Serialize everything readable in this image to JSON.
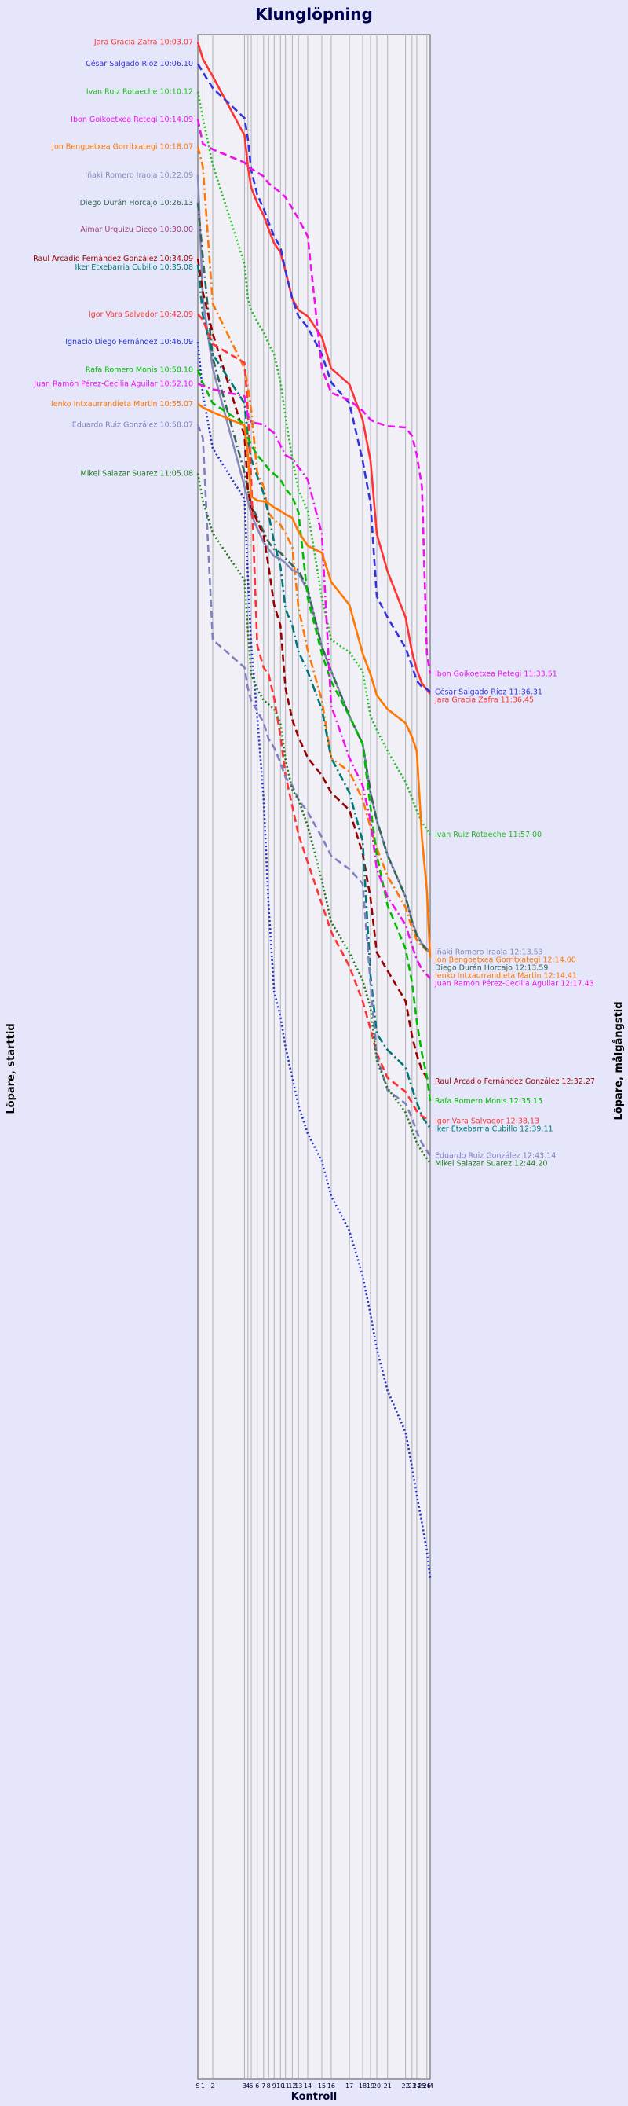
{
  "chart_data": {
    "type": "line",
    "title": "Klunglöpning",
    "xlabel": "Kontroll",
    "ylabel_left": "Löpare, starttid",
    "ylabel_right": "Löpare, målgångstid",
    "grid": true,
    "controls": [
      "S",
      "1",
      "2",
      "3",
      "4",
      "5",
      "6",
      "7",
      "8",
      "9",
      "10",
      "11",
      "12",
      "13",
      "14",
      "15",
      "16",
      "17",
      "18",
      "19",
      "20",
      "21",
      "22",
      "23",
      "24",
      "25",
      "26",
      "M"
    ],
    "x_tick_labels": [
      "S",
      "1",
      "2",
      "3",
      "4",
      "5",
      "6",
      "7",
      "8",
      "9",
      "10",
      "11",
      "12",
      "13",
      "14",
      "15",
      "16",
      "17",
      "18",
      "19",
      "20",
      "21",
      "22",
      "23",
      "24",
      "25",
      "26",
      "M"
    ],
    "y_range_minutes": [
      602.0,
      896.0
    ],
    "series": [
      {
        "name": "Jara Gracia Zafra",
        "start": "10:03.07",
        "finish": "11:36.45",
        "start_min": 603.1,
        "finish_min": 696.8,
        "color": "#ff3333",
        "dash": "solid",
        "times": [
          603.1,
          605.5,
          608.0,
          616.5,
          621.0,
          624.0,
          626.2,
          628.0,
          630.0,
          632.0,
          633.3,
          636.0,
          640.0,
          641.6,
          642.5,
          645.5,
          650.0,
          652.3,
          657.4,
          663.3,
          673.8,
          679.2,
          685.8,
          690.8,
          693.3,
          695.3,
          696.2,
          696.8
        ]
      },
      {
        "name": "César Salgado Rioz",
        "start": "10:06.10",
        "finish": "11:36.31",
        "start_min": 606.2,
        "finish_min": 696.5,
        "color": "#3333dd",
        "dash": "dash",
        "times": [
          606.2,
          607.4,
          609.7,
          614.0,
          617.0,
          621.5,
          625.0,
          627.0,
          629.0,
          631.0,
          632.6,
          636.0,
          640.0,
          642.5,
          644.1,
          648.0,
          652.0,
          655.0,
          663.3,
          669.4,
          682.8,
          685.8,
          690.2,
          692.8,
          694.9,
          695.8,
          696.1,
          696.5
        ]
      },
      {
        "name": "Ivan Ruiz Rotaeche",
        "start": "10:10.12",
        "finish": "11:57.00",
        "start_min": 610.2,
        "finish_min": 717.0,
        "color": "#22bb22",
        "dash": "dot",
        "times": [
          610.2,
          614.0,
          620.7,
          635.0,
          640.0,
          641.6,
          643.3,
          644.8,
          646.5,
          648.0,
          652.0,
          657.0,
          663.0,
          667.5,
          670.5,
          683.0,
          689.0,
          690.8,
          693.6,
          700.0,
          702.0,
          705.0,
          709.5,
          711.8,
          713.6,
          715.2,
          716.3,
          717.0
        ]
      },
      {
        "name": "Ibon Goikoetxea Retegi",
        "start": "10:14.09",
        "finish": "11:33.51",
        "start_min": 614.2,
        "finish_min": 693.9,
        "color": "#ee11ee",
        "dash": "dash",
        "times": [
          614.2,
          617.7,
          618.5,
          620.4,
          621.0,
          621.3,
          621.8,
          622.4,
          623.4,
          624.0,
          624.7,
          625.4,
          627.0,
          628.5,
          631.0,
          650.0,
          653.5,
          654.6,
          656.1,
          657.4,
          657.8,
          658.3,
          658.5,
          659.7,
          662.4,
          667.0,
          691.0,
          693.9
        ]
      },
      {
        "name": "Jon Bengoetxea Gorritxategi",
        "start": "10:18.07",
        "finish": "12:14.00",
        "start_min": 618.1,
        "finish_min": 734.0,
        "color": "#ff7700",
        "dash": "dashdot",
        "times": [
          618.1,
          621.0,
          640.7,
          650.0,
          652.7,
          656.0,
          665.0,
          667.0,
          670.8,
          671.8,
          672.5,
          673.7,
          675.7,
          684.4,
          690.5,
          697.7,
          706.0,
          708.0,
          712.0,
          716.0,
          719.0,
          723.0,
          727.5,
          730.5,
          732.2,
          733.1,
          733.7,
          734.0
        ]
      },
      {
        "name": "Iñaki Romero Iraola",
        "start": "10:22.09",
        "finish": "12:13.53",
        "start_min": 622.2,
        "finish_min": 733.9,
        "color": "#8888bb",
        "dash": "solid",
        "times": [
          622.2,
          640.0,
          650.0,
          667.0,
          669.0,
          671.0,
          673.0,
          675.0,
          676.0,
          677.0,
          677.4,
          678.0,
          679.0,
          679.4,
          682.0,
          690.0,
          693.5,
          700.0,
          704.0,
          711.0,
          715.0,
          720.0,
          726.0,
          729.5,
          731.4,
          732.7,
          733.5,
          733.9
        ]
      },
      {
        "name": "Diego Durán Horcajo",
        "start": "10:26.13",
        "finish": "12:13.59",
        "start_min": 626.2,
        "finish_min": 734.0,
        "color": "#336655",
        "dash": "dashdot",
        "times": [
          626.2,
          634.0,
          648.5,
          665.0,
          667.5,
          669.5,
          671.5,
          673.5,
          675.0,
          676.0,
          676.5,
          677.3,
          678.3,
          679.0,
          681.7,
          690.0,
          693.5,
          700.0,
          704.0,
          711.0,
          715.0,
          720.0,
          726.0,
          729.5,
          731.5,
          732.8,
          733.6,
          734.0
        ]
      },
      {
        "name": "Aimar Urquizu Diego",
        "start": "10:30.00",
        "finish": "",
        "start_min": 630.0,
        "finish_min": null,
        "color": "#a04080",
        "dash": "solid",
        "times": []
      },
      {
        "name": "Raul Arcadio Fernández González",
        "start": "10:34.09",
        "finish": "12:32.27",
        "start_min": 634.2,
        "finish_min": 752.5,
        "color": "#990000",
        "dash": "dash",
        "times": [
          634.2,
          639.0,
          645.0,
          659.7,
          667.4,
          669.9,
          672.0,
          674.0,
          678.5,
          684.0,
          687.0,
          696.0,
          700.5,
          703.0,
          706.0,
          708.5,
          711.0,
          713.5,
          719.8,
          726.2,
          734.0,
          736.6,
          741.0,
          746.0,
          748.7,
          750.9,
          752.0,
          752.5
        ]
      },
      {
        "name": "Iker Etxebarria Cubillo",
        "start": "10:35.08",
        "finish": "12:39.11",
        "start_min": 635.1,
        "finish_min": 759.2,
        "color": "#007777",
        "dash": "dashdot",
        "times": [
          635.1,
          642.4,
          648.0,
          655.0,
          660.0,
          663.0,
          665.5,
          668.0,
          671.0,
          675.0,
          678.5,
          684.6,
          687.0,
          690.7,
          693.6,
          699.0,
          706.0,
          711.0,
          718.0,
          737.3,
          745.7,
          748.0,
          750.5,
          753.5,
          755.5,
          757.5,
          758.6,
          759.2
        ]
      },
      {
        "name": "Igor Vara Salvador",
        "start": "10:42.09",
        "finish": "12:38.13",
        "start_min": 642.2,
        "finish_min": 758.2,
        "color": "#ff3333",
        "dash": "dash",
        "times": [
          642.2,
          643.0,
          646.5,
          649.2,
          656.0,
          666.0,
          689.8,
          693.0,
          694.0,
          697.4,
          702.9,
          708.5,
          713.0,
          717.0,
          721.0,
          727.0,
          731.0,
          736.0,
          741.0,
          745.0,
          748.5,
          752.0,
          754.0,
          755.6,
          756.8,
          757.5,
          757.9,
          758.2
        ]
      },
      {
        "name": "Ignacio Diego Fernández",
        "start": "10:46.09",
        "finish": "",
        "start_min": 646.2,
        "finish_min": null,
        "color": "#2233cc",
        "dash": "dot",
        "times": [
          646.2,
          653.7,
          661.5,
          668.8,
          680.0,
          689.8,
          700.0,
          711.9,
          727.3,
          739.6,
          743.2,
          747.6,
          752.0,
          756.0,
          760.0,
          764.0,
          769.0,
          774.0,
          780.5,
          786.0,
          791.0,
          797.0,
          803.0,
          808.0,
          812.0,
          816.0,
          820.0,
          824.0
        ]
      },
      {
        "name": "Rafa Romero Monis",
        "start": "10:50.10",
        "finish": "12:35.15",
        "start_min": 650.2,
        "finish_min": 755.3,
        "color": "#00bb00",
        "dash": "dash",
        "times": [
          650.2,
          652.1,
          655.0,
          658.0,
          659.9,
          661.0,
          662.5,
          663.5,
          664.5,
          665.2,
          666.0,
          667.3,
          668.5,
          670.7,
          683.0,
          691.0,
          695.0,
          700.0,
          704.0,
          713.1,
          720.0,
          727.2,
          733.5,
          738.3,
          743.9,
          748.5,
          751.8,
          755.3
        ]
      },
      {
        "name": "Juan Ramón Pérez-Cecilia Aguilar",
        "start": "10:52.10",
        "finish": "12:17.43",
        "start_min": 652.2,
        "finish_min": 737.7,
        "color": "#ee11ee",
        "dash": "dashdot",
        "times": [
          652.2,
          652.5,
          653.0,
          654.0,
          656.8,
          657.7,
          657.9,
          658.1,
          658.7,
          659.3,
          661.1,
          662.5,
          663.0,
          664.2,
          666.0,
          673.8,
          698.5,
          706.0,
          710.0,
          715.0,
          722.0,
          726.0,
          730.0,
          733.0,
          735.0,
          736.4,
          737.2,
          737.7
        ]
      },
      {
        "name": "Ienko Intxaurrandieta Martin",
        "start": "10:55.07",
        "finish": "12:14.41",
        "start_min": 655.1,
        "finish_min": 734.7,
        "color": "#ff7700",
        "dash": "solid",
        "times": [
          655.1,
          655.6,
          656.3,
          658.2,
          662.4,
          668.4,
          669.0,
          669.1,
          669.4,
          670.0,
          670.5,
          671.0,
          671.5,
          673.5,
          675.5,
          676.5,
          680.7,
          684.0,
          691.0,
          694.0,
          697.0,
          699.0,
          701.0,
          703.0,
          705.0,
          717.5,
          725.0,
          734.7
        ]
      },
      {
        "name": "Eduardo Ruiz González",
        "start": "10:58.07",
        "finish": "12:43.14",
        "start_min": 658.1,
        "finish_min": 763.2,
        "color": "#8080c0",
        "dash": "dash",
        "times": [
          658.1,
          660.0,
          689.0,
          693.0,
          696.0,
          697.8,
          699.2,
          701.0,
          703.3,
          704.5,
          706.7,
          708.8,
          710.0,
          712.0,
          713.8,
          717.4,
          720.1,
          722.0,
          724.1,
          738.5,
          748.8,
          753.8,
          755.7,
          757.8,
          759.8,
          761.4,
          762.5,
          763.2
        ]
      },
      {
        "name": "Mikel Salazar Suarez",
        "start": "11:05.08",
        "finish": "12:44.20",
        "start_min": 665.1,
        "finish_min": 764.3,
        "color": "#227722",
        "dash": "dot",
        "times": [
          665.1,
          669.0,
          673.7,
          680.4,
          687.8,
          694.0,
          696.1,
          697.7,
          698.3,
          699.0,
          701.0,
          706.3,
          710.6,
          712.0,
          715.8,
          723.6,
          729.6,
          734.0,
          738.0,
          742.0,
          749.5,
          753.5,
          757.0,
          759.5,
          761.3,
          762.6,
          763.6,
          764.3
        ]
      }
    ]
  }
}
